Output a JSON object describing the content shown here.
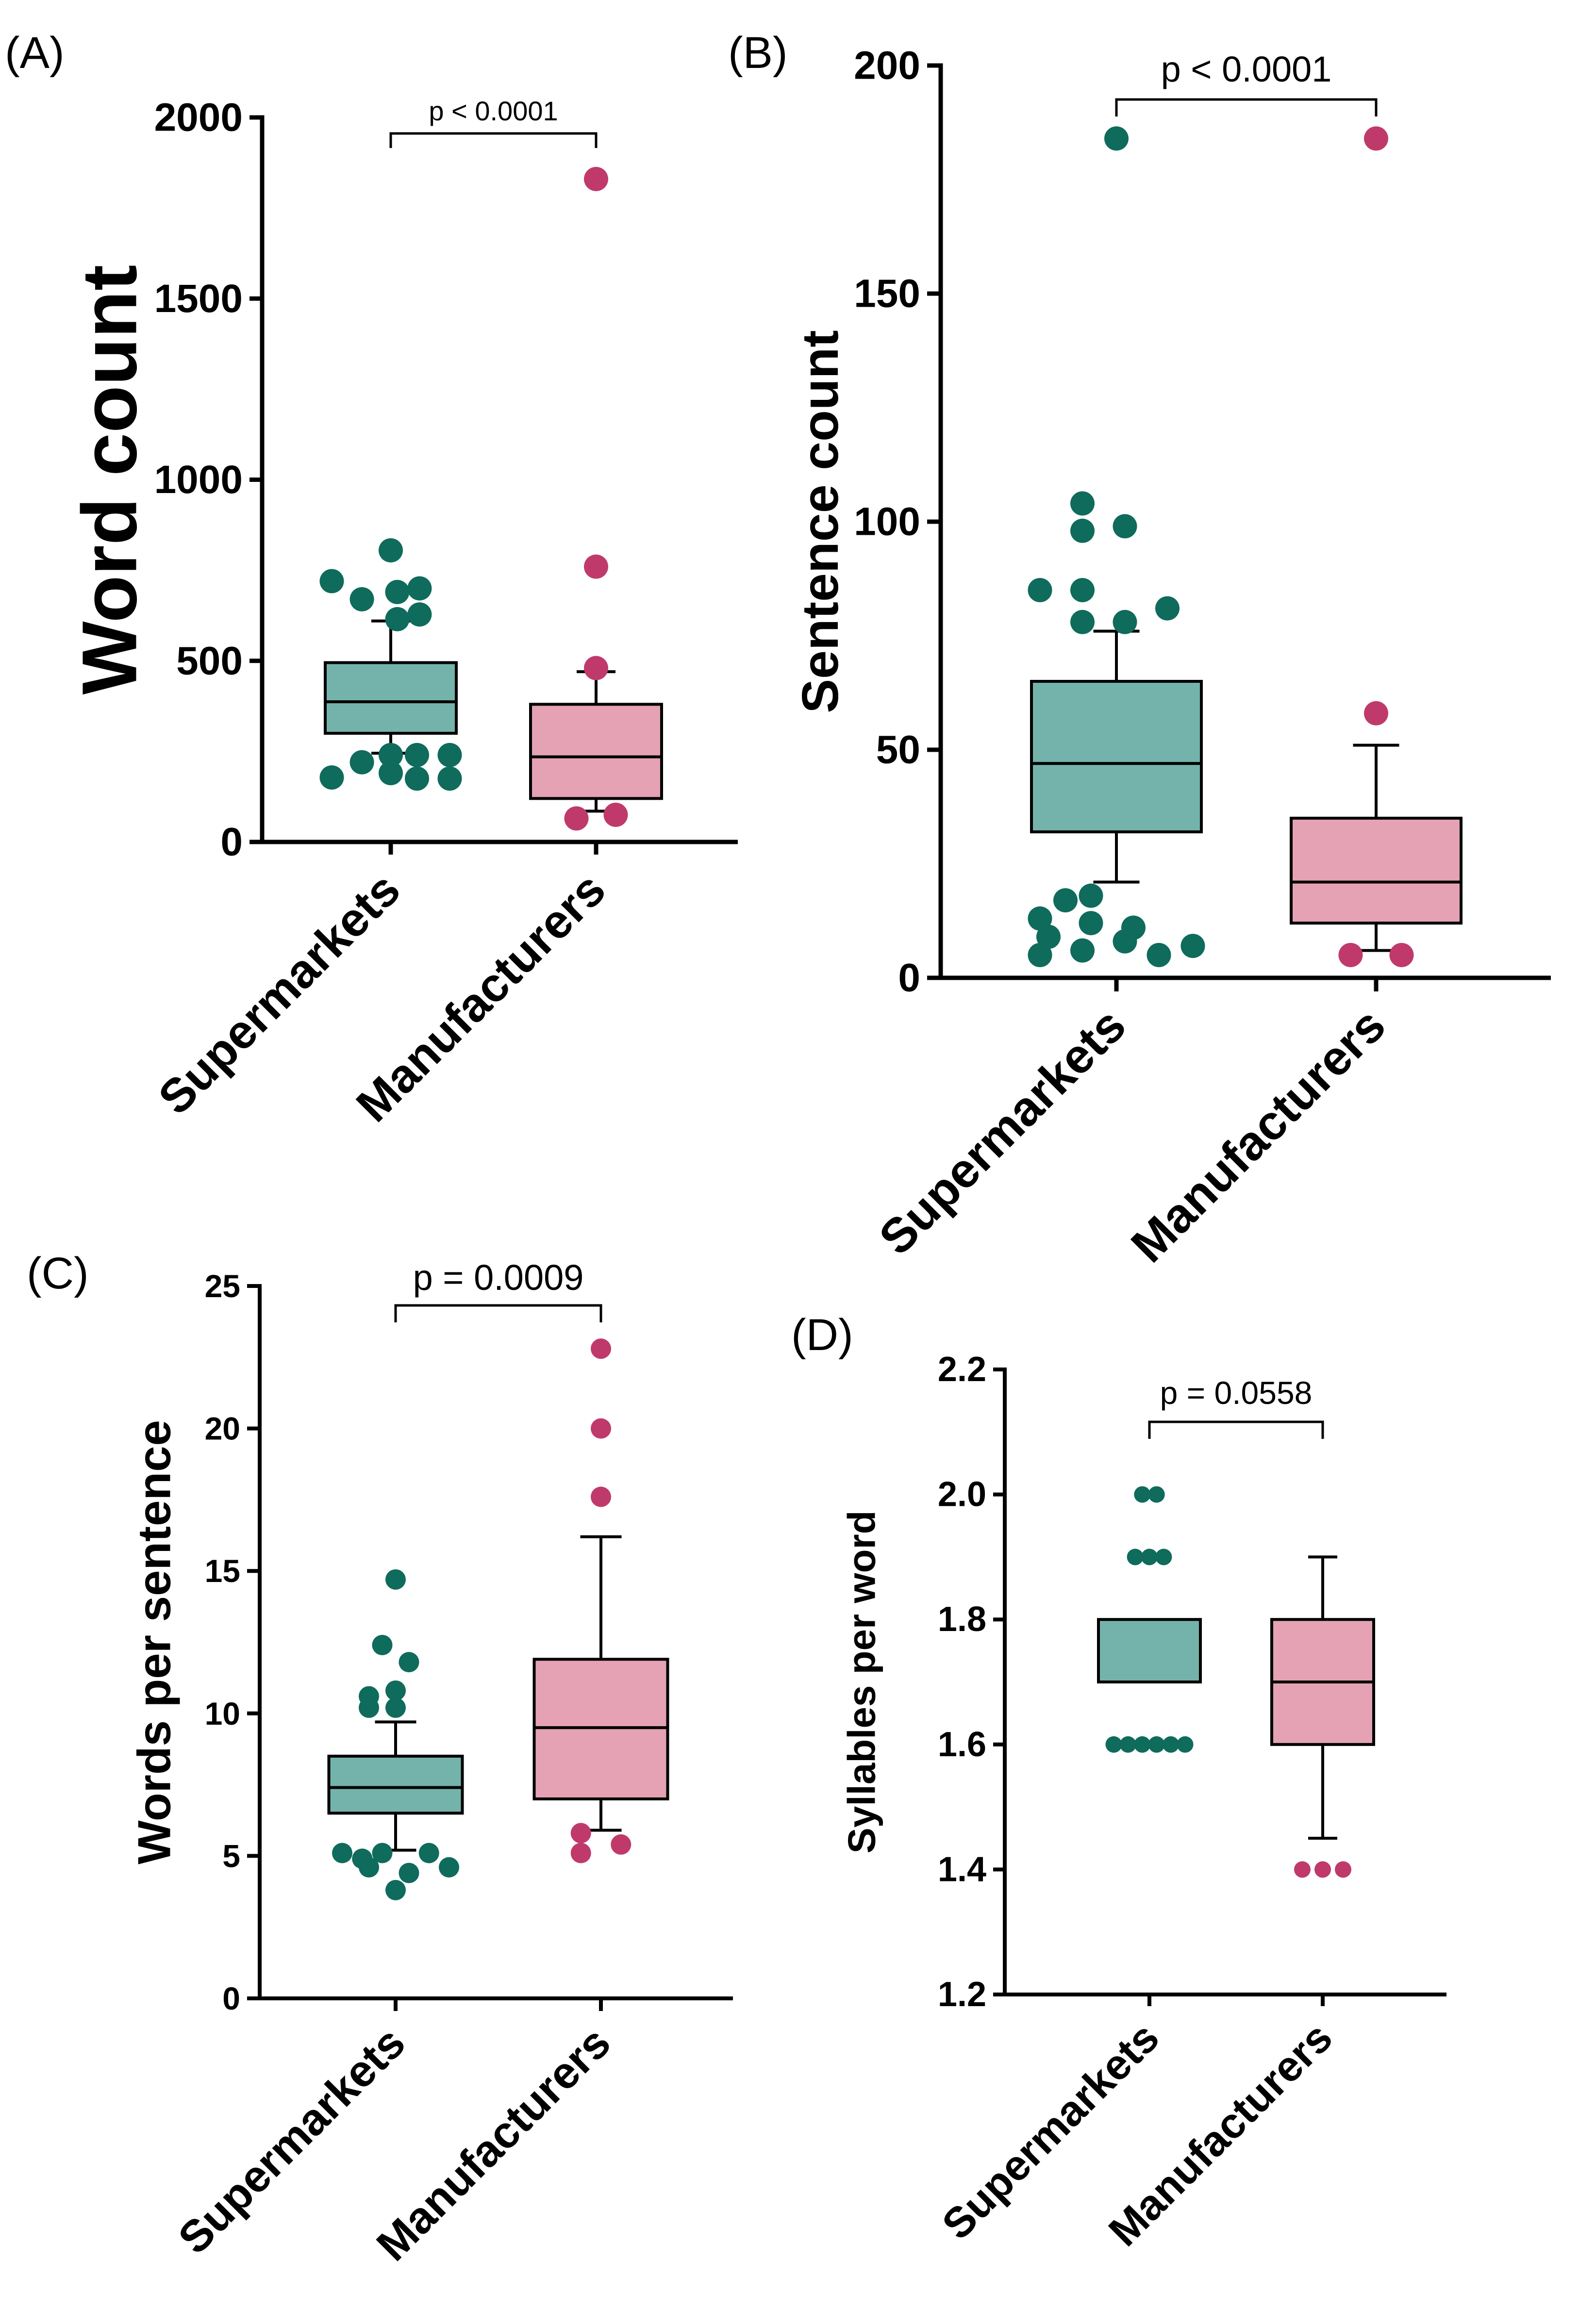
{
  "figure": {
    "colors": {
      "supermarkets_box": "#74b3ab",
      "supermarkets_point": "#0f6b5c",
      "manufacturers_box": "#e4a2b4",
      "manufacturers_point": "#bf3a6a",
      "ink": "#000000"
    }
  },
  "chart_data": [
    {
      "type": "box",
      "panel": "(A)",
      "ylabel": "Word count",
      "ylim": [
        0,
        2000
      ],
      "yticks": [
        "0",
        "500",
        "1000",
        "1500",
        "2000"
      ],
      "categories": [
        "Supermarkets",
        "Manufacturers"
      ],
      "comparison": "p < 0.0001",
      "series": [
        {
          "name": "Supermarkets",
          "box": {
            "whisker_low": 245,
            "q1": 300,
            "median": 387,
            "q3": 495,
            "whisker_high": 610
          },
          "outliers": [
            {
              "dx": -0.45,
              "y": 720
            },
            {
              "dx": -0.22,
              "y": 670
            },
            {
              "dx": 0.0,
              "y": 805
            },
            {
              "dx": 0.05,
              "y": 690
            },
            {
              "dx": 0.22,
              "y": 700
            },
            {
              "dx": 0.05,
              "y": 615
            },
            {
              "dx": 0.22,
              "y": 628
            },
            {
              "dx": -0.45,
              "y": 178
            },
            {
              "dx": -0.22,
              "y": 220
            },
            {
              "dx": 0.0,
              "y": 190
            },
            {
              "dx": 0.2,
              "y": 175
            },
            {
              "dx": 0.2,
              "y": 240
            },
            {
              "dx": 0.0,
              "y": 240
            },
            {
              "dx": 0.45,
              "y": 175
            },
            {
              "dx": 0.45,
              "y": 240
            }
          ]
        },
        {
          "name": "Manufacturers",
          "box": {
            "whisker_low": 85,
            "q1": 120,
            "median": 235,
            "q3": 380,
            "whisker_high": 470
          },
          "outliers": [
            {
              "dx": 0.0,
              "y": 1830
            },
            {
              "dx": 0.0,
              "y": 760
            },
            {
              "dx": 0.0,
              "y": 480
            },
            {
              "dx": -0.15,
              "y": 65
            },
            {
              "dx": 0.15,
              "y": 75
            }
          ]
        }
      ]
    },
    {
      "type": "box",
      "panel": "(B)",
      "ylabel": "Sentence count",
      "ylim": [
        0,
        200
      ],
      "yticks": [
        "0",
        "50",
        "100",
        "150",
        "200"
      ],
      "categories": [
        "Supermarkets",
        "Manufacturers"
      ],
      "comparison": "p < 0.0001",
      "series": [
        {
          "name": "Supermarkets",
          "box": {
            "whisker_low": 21,
            "q1": 32,
            "median": 47,
            "q3": 65,
            "whisker_high": 76
          },
          "outliers": [
            {
              "dx": 0.0,
              "y": 184
            },
            {
              "dx": -0.2,
              "y": 104
            },
            {
              "dx": -0.2,
              "y": 98
            },
            {
              "dx": 0.05,
              "y": 99
            },
            {
              "dx": -0.45,
              "y": 85
            },
            {
              "dx": -0.2,
              "y": 85
            },
            {
              "dx": 0.05,
              "y": 78
            },
            {
              "dx": -0.2,
              "y": 78
            },
            {
              "dx": 0.3,
              "y": 81
            },
            {
              "dx": -0.45,
              "y": 13
            },
            {
              "dx": -0.3,
              "y": 17
            },
            {
              "dx": -0.15,
              "y": 18
            },
            {
              "dx": -0.4,
              "y": 9
            },
            {
              "dx": -0.15,
              "y": 12
            },
            {
              "dx": 0.1,
              "y": 11
            },
            {
              "dx": -0.45,
              "y": 5
            },
            {
              "dx": -0.2,
              "y": 6
            },
            {
              "dx": 0.05,
              "y": 8
            },
            {
              "dx": 0.25,
              "y": 5
            },
            {
              "dx": 0.45,
              "y": 7
            }
          ]
        },
        {
          "name": "Manufacturers",
          "box": {
            "whisker_low": 6,
            "q1": 12,
            "median": 21,
            "q3": 35,
            "whisker_high": 51
          },
          "outliers": [
            {
              "dx": 0.0,
              "y": 184
            },
            {
              "dx": 0.0,
              "y": 58
            },
            {
              "dx": -0.15,
              "y": 5
            },
            {
              "dx": 0.15,
              "y": 5
            }
          ]
        }
      ]
    },
    {
      "type": "box",
      "panel": "(C)",
      "ylabel": "Words per sentence",
      "ylim": [
        0,
        25
      ],
      "yticks": [
        "0",
        "5",
        "10",
        "15",
        "20",
        "25"
      ],
      "categories": [
        "Supermarkets",
        "Manufacturers"
      ],
      "comparison": "p = 0.0009",
      "series": [
        {
          "name": "Supermarkets",
          "box": {
            "whisker_low": 5.2,
            "q1": 6.5,
            "median": 7.4,
            "q3": 8.5,
            "whisker_high": 9.7
          },
          "outliers": [
            {
              "dx": 0.0,
              "y": 14.7
            },
            {
              "dx": -0.1,
              "y": 12.4
            },
            {
              "dx": 0.1,
              "y": 11.8
            },
            {
              "dx": -0.2,
              "y": 10.6
            },
            {
              "dx": 0.0,
              "y": 10.8
            },
            {
              "dx": -0.2,
              "y": 10.2
            },
            {
              "dx": 0.0,
              "y": 10.2
            },
            {
              "dx": -0.4,
              "y": 5.1
            },
            {
              "dx": -0.25,
              "y": 4.9
            },
            {
              "dx": -0.1,
              "y": 5.1
            },
            {
              "dx": 0.25,
              "y": 5.1
            },
            {
              "dx": -0.2,
              "y": 4.6
            },
            {
              "dx": 0.1,
              "y": 4.4
            },
            {
              "dx": 0.4,
              "y": 4.6
            },
            {
              "dx": 0.0,
              "y": 3.8
            }
          ]
        },
        {
          "name": "Manufacturers",
          "box": {
            "whisker_low": 5.9,
            "q1": 7.0,
            "median": 9.5,
            "q3": 11.9,
            "whisker_high": 16.2
          },
          "outliers": [
            {
              "dx": 0.0,
              "y": 22.8
            },
            {
              "dx": 0.0,
              "y": 20.0
            },
            {
              "dx": 0.0,
              "y": 17.6
            },
            {
              "dx": -0.15,
              "y": 5.8
            },
            {
              "dx": -0.15,
              "y": 5.1
            },
            {
              "dx": 0.15,
              "y": 5.4
            }
          ]
        }
      ]
    },
    {
      "type": "box",
      "panel": "(D)",
      "ylabel": "Syllables per word",
      "ylim": [
        1.2,
        2.2
      ],
      "yticks": [
        "1.2",
        "1.4",
        "1.6",
        "1.8",
        "2.0",
        "2.2"
      ],
      "categories": [
        "Supermarkets",
        "Manufacturers"
      ],
      "comparison": "p = 0.0558",
      "series": [
        {
          "name": "Supermarkets",
          "box": {
            "whisker_low": 1.7,
            "q1": 1.7,
            "median": 1.7,
            "q3": 1.8,
            "whisker_high": 1.8
          },
          "outliers": [
            {
              "dx": -0.07,
              "y": 2.0
            },
            {
              "dx": 0.07,
              "y": 2.0
            },
            {
              "dx": -0.14,
              "y": 1.9
            },
            {
              "dx": 0.0,
              "y": 1.9
            },
            {
              "dx": 0.14,
              "y": 1.9
            },
            {
              "dx": -0.35,
              "y": 1.6
            },
            {
              "dx": -0.21,
              "y": 1.6
            },
            {
              "dx": -0.07,
              "y": 1.6
            },
            {
              "dx": 0.07,
              "y": 1.6
            },
            {
              "dx": 0.21,
              "y": 1.6
            },
            {
              "dx": 0.35,
              "y": 1.6
            }
          ]
        },
        {
          "name": "Manufacturers",
          "box": {
            "whisker_low": 1.45,
            "q1": 1.6,
            "median": 1.7,
            "q3": 1.8,
            "whisker_high": 1.9
          },
          "outliers": [
            {
              "dx": -0.2,
              "y": 1.4
            },
            {
              "dx": 0.0,
              "y": 1.4
            },
            {
              "dx": 0.2,
              "y": 1.4
            }
          ]
        }
      ]
    }
  ]
}
